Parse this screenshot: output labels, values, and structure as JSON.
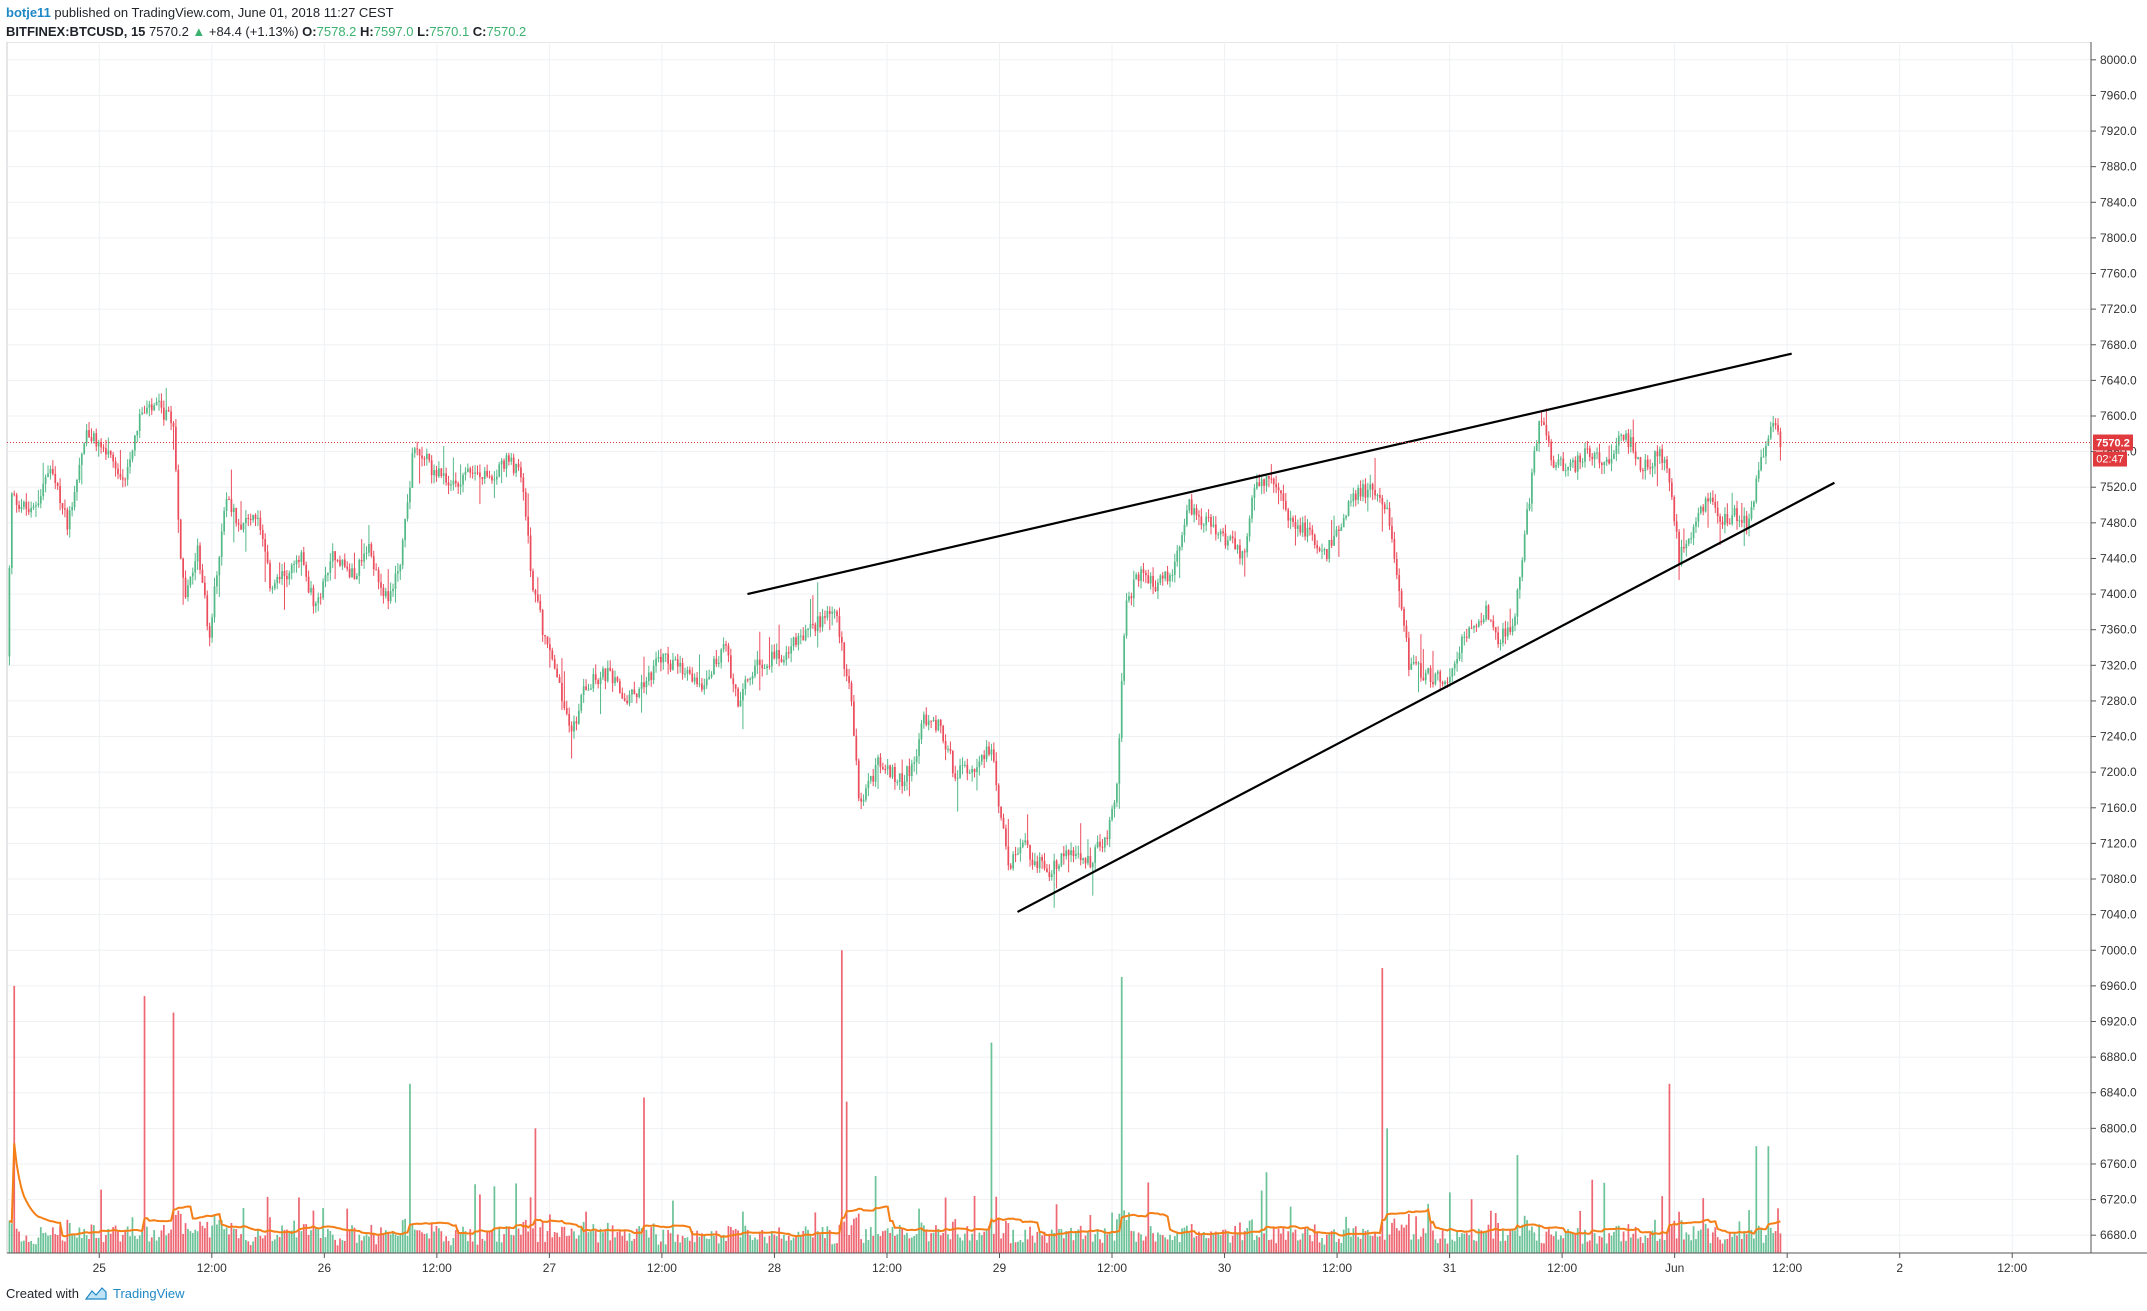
{
  "header": {
    "author": "botje11",
    "published_text": " published on TradingView.com, June 01, 2018 11:27 CEST",
    "symbol": "BITFINEX:BTCUSD, 15",
    "last": "7570.2",
    "change_arrow": "▲",
    "change": "+84.4 (+1.13%)",
    "o_label": "O:",
    "o_value": "7578.2",
    "h_label": "H:",
    "h_value": "7597.0",
    "l_label": "L:",
    "l_value": "7570.1",
    "c_label": "C:",
    "c_value": "7570.2"
  },
  "footer": {
    "created_with": "Created with",
    "brand": "TradingView"
  },
  "colors": {
    "up": "#53b987",
    "down": "#eb4d5c",
    "grid": "#eef1f4",
    "price_line": "#e0393e",
    "ma_orange": "#f57f17",
    "ma_red": "#e11d1d",
    "trendline": "#000000"
  },
  "chart_data": {
    "type": "candlestick",
    "symbol": "BITFINEX:BTCUSD",
    "interval": "15",
    "y_axis": {
      "min": 6660,
      "max": 8020,
      "ticks": [
        "8000.0",
        "7960.0",
        "7920.0",
        "7880.0",
        "7840.0",
        "7800.0",
        "7760.0",
        "7720.0",
        "7680.0",
        "7640.0",
        "7600.0",
        "7560.0",
        "7520.0",
        "7480.0",
        "7440.0",
        "7400.0",
        "7360.0",
        "7320.0",
        "7280.0",
        "7240.0",
        "7200.0",
        "7160.0",
        "7120.0",
        "7080.0",
        "7040.0",
        "7000.0",
        "6960.0",
        "6920.0",
        "6880.0",
        "6840.0",
        "6800.0",
        "6760.0",
        "6720.0",
        "6680.0"
      ]
    },
    "x_axis": {
      "ticks": [
        {
          "label": "25",
          "t": 0.0
        },
        {
          "label": "12:00",
          "t": 0.5
        },
        {
          "label": "26",
          "t": 1.0
        },
        {
          "label": "12:00",
          "t": 1.5
        },
        {
          "label": "27",
          "t": 2.0
        },
        {
          "label": "12:00",
          "t": 2.5
        },
        {
          "label": "28",
          "t": 3.0
        },
        {
          "label": "12:00",
          "t": 3.5
        },
        {
          "label": "29",
          "t": 4.0
        },
        {
          "label": "12:00",
          "t": 4.5
        },
        {
          "label": "30",
          "t": 5.0
        },
        {
          "label": "12:00",
          "t": 5.5
        },
        {
          "label": "31",
          "t": 6.0
        },
        {
          "label": "12:00",
          "t": 6.5
        },
        {
          "label": "Jun",
          "t": 7.0
        },
        {
          "label": "12:00",
          "t": 7.5
        },
        {
          "label": "2",
          "t": 8.0
        },
        {
          "label": "12:00",
          "t": 8.5
        }
      ],
      "t_min": -0.41,
      "t_max": 8.85
    },
    "price_path": [
      [
        -0.41,
        7330
      ],
      [
        -0.39,
        7510
      ],
      [
        -0.3,
        7490
      ],
      [
        -0.22,
        7540
      ],
      [
        -0.14,
        7480
      ],
      [
        -0.06,
        7580
      ],
      [
        0.03,
        7560
      ],
      [
        0.1,
        7520
      ],
      [
        0.18,
        7600
      ],
      [
        0.26,
        7610
      ],
      [
        0.33,
        7590
      ],
      [
        0.36,
        7450
      ],
      [
        0.38,
        7390
      ],
      [
        0.44,
        7450
      ],
      [
        0.49,
        7350
      ],
      [
        0.56,
        7510
      ],
      [
        0.62,
        7480
      ],
      [
        0.7,
        7490
      ],
      [
        0.76,
        7410
      ],
      [
        0.82,
        7420
      ],
      [
        0.9,
        7440
      ],
      [
        0.96,
        7380
      ],
      [
        1.04,
        7450
      ],
      [
        1.12,
        7420
      ],
      [
        1.2,
        7450
      ],
      [
        1.28,
        7390
      ],
      [
        1.34,
        7440
      ],
      [
        1.4,
        7570
      ],
      [
        1.48,
        7540
      ],
      [
        1.56,
        7520
      ],
      [
        1.64,
        7540
      ],
      [
        1.72,
        7530
      ],
      [
        1.82,
        7550
      ],
      [
        1.88,
        7530
      ],
      [
        1.92,
        7420
      ],
      [
        1.98,
        7350
      ],
      [
        2.02,
        7320
      ],
      [
        2.1,
        7240
      ],
      [
        2.16,
        7300
      ],
      [
        2.26,
        7310
      ],
      [
        2.34,
        7280
      ],
      [
        2.42,
        7300
      ],
      [
        2.5,
        7330
      ],
      [
        2.6,
        7310
      ],
      [
        2.68,
        7300
      ],
      [
        2.78,
        7340
      ],
      [
        2.84,
        7280
      ],
      [
        2.92,
        7320
      ],
      [
        3.02,
        7330
      ],
      [
        3.12,
        7350
      ],
      [
        3.2,
        7370
      ],
      [
        3.26,
        7390
      ],
      [
        3.3,
        7340
      ],
      [
        3.34,
        7280
      ],
      [
        3.38,
        7160
      ],
      [
        3.46,
        7210
      ],
      [
        3.56,
        7190
      ],
      [
        3.62,
        7210
      ],
      [
        3.66,
        7260
      ],
      [
        3.74,
        7250
      ],
      [
        3.8,
        7200
      ],
      [
        3.9,
        7210
      ],
      [
        3.96,
        7230
      ],
      [
        4.0,
        7160
      ],
      [
        4.04,
        7090
      ],
      [
        4.1,
        7120
      ],
      [
        4.16,
        7100
      ],
      [
        4.22,
        7090
      ],
      [
        4.3,
        7110
      ],
      [
        4.4,
        7100
      ],
      [
        4.48,
        7130
      ],
      [
        4.52,
        7180
      ],
      [
        4.56,
        7390
      ],
      [
        4.62,
        7420
      ],
      [
        4.7,
        7410
      ],
      [
        4.78,
        7430
      ],
      [
        4.84,
        7500
      ],
      [
        4.92,
        7480
      ],
      [
        5.02,
        7460
      ],
      [
        5.08,
        7440
      ],
      [
        5.14,
        7530
      ],
      [
        5.22,
        7520
      ],
      [
        5.3,
        7480
      ],
      [
        5.38,
        7470
      ],
      [
        5.44,
        7440
      ],
      [
        5.52,
        7480
      ],
      [
        5.58,
        7510
      ],
      [
        5.66,
        7520
      ],
      [
        5.72,
        7500
      ],
      [
        5.78,
        7400
      ],
      [
        5.82,
        7320
      ],
      [
        5.9,
        7310
      ],
      [
        5.98,
        7300
      ],
      [
        6.08,
        7360
      ],
      [
        6.16,
        7380
      ],
      [
        6.22,
        7350
      ],
      [
        6.28,
        7360
      ],
      [
        6.34,
        7480
      ],
      [
        6.4,
        7600
      ],
      [
        6.46,
        7550
      ],
      [
        6.54,
        7540
      ],
      [
        6.62,
        7560
      ],
      [
        6.7,
        7550
      ],
      [
        6.78,
        7580
      ],
      [
        6.86,
        7540
      ],
      [
        6.94,
        7560
      ],
      [
        6.98,
        7520
      ],
      [
        7.02,
        7440
      ],
      [
        7.08,
        7470
      ],
      [
        7.14,
        7510
      ],
      [
        7.2,
        7480
      ],
      [
        7.26,
        7490
      ],
      [
        7.32,
        7480
      ],
      [
        7.36,
        7520
      ],
      [
        7.4,
        7570
      ],
      [
        7.44,
        7590
      ],
      [
        7.47,
        7570
      ]
    ],
    "volume_spikes": [
      [
        -0.38,
        6960
      ],
      [
        0.2,
        6920
      ],
      [
        0.33,
        6930
      ],
      [
        1.38,
        6850
      ],
      [
        1.94,
        6800
      ],
      [
        2.42,
        6790
      ],
      [
        3.3,
        7000
      ],
      [
        3.32,
        6830
      ],
      [
        3.96,
        6850
      ],
      [
        4.54,
        6970
      ],
      [
        5.7,
        6980
      ],
      [
        5.72,
        6800
      ],
      [
        6.3,
        6770
      ],
      [
        6.98,
        6850
      ],
      [
        7.36,
        6780
      ],
      [
        7.42,
        6780
      ]
    ],
    "trendlines": [
      {
        "from": [
          2.88,
          7400
        ],
        "to": [
          7.52,
          7670
        ]
      },
      {
        "from": [
          4.08,
          7043
        ],
        "to": [
          7.71,
          7525
        ]
      }
    ],
    "last_price": 7570.2,
    "last_price_label": "7570.2",
    "countdown_label": "02:47"
  }
}
